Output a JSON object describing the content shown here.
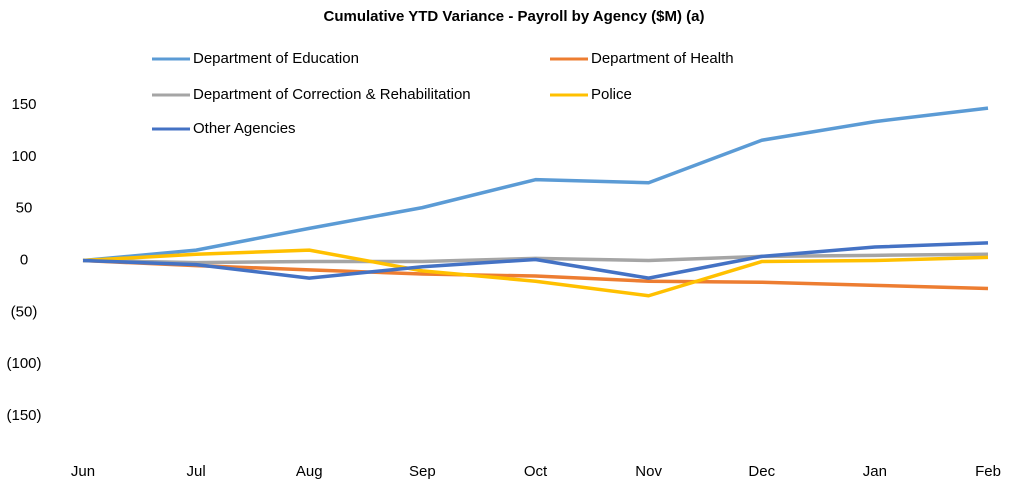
{
  "chart_data": {
    "type": "line",
    "title": "Cumulative YTD Variance - Payroll by Agency ($M) (a)",
    "categories": [
      "Jun",
      "Jul",
      "Aug",
      "Sep",
      "Oct",
      "Nov",
      "Dec",
      "Jan",
      "Feb"
    ],
    "series": [
      {
        "name": "Department of Education",
        "color": "#5b9bd5",
        "values": [
          0,
          10,
          31,
          51,
          78,
          75,
          116,
          134,
          147
        ]
      },
      {
        "name": "Department of Health",
        "color": "#ed7d31",
        "values": [
          0,
          -5,
          -9,
          -13,
          -15,
          -20,
          -21,
          -24,
          -27
        ]
      },
      {
        "name": "Department of Correction & Rehabilitation",
        "color": "#a5a5a5",
        "values": [
          0,
          -2,
          -1,
          -1,
          2,
          0,
          4,
          5,
          6
        ]
      },
      {
        "name": "Police",
        "color": "#ffc000",
        "values": [
          0,
          6,
          10,
          -10,
          -20,
          -34,
          -1,
          0,
          3
        ]
      },
      {
        "name": "Other Agencies",
        "color": "#4472c4",
        "values": [
          0,
          -4,
          -17,
          -6,
          1,
          -17,
          4,
          13,
          17
        ]
      }
    ],
    "ylim": [
      -150,
      150
    ],
    "yticks": [
      150,
      100,
      50,
      0,
      {
        "value": -50,
        "label": "(50)"
      },
      {
        "value": -100,
        "label": "(100)"
      },
      {
        "value": -150,
        "label": "(150)"
      }
    ],
    "grid": false,
    "legend": "top"
  }
}
